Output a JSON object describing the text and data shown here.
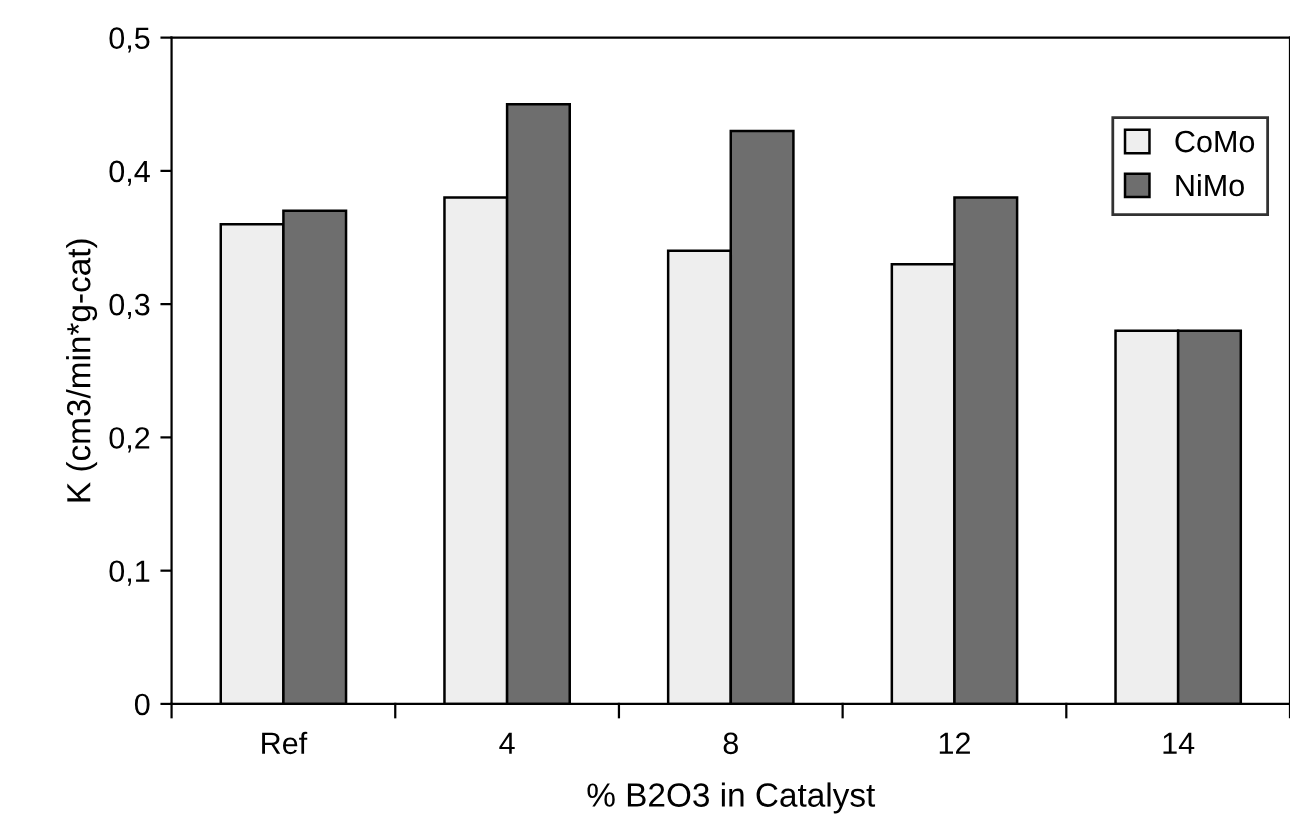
{
  "chart_data": {
    "type": "bar",
    "xlabel": "% B2O3 in Catalyst",
    "ylabel": "K (cm3/min*g-cat)",
    "categories": [
      "Ref",
      "4",
      "8",
      "12",
      "14"
    ],
    "series": [
      {
        "name": "CoMo",
        "color": "#eeeeee",
        "values": [
          0.36,
          0.38,
          0.34,
          0.33,
          0.28
        ]
      },
      {
        "name": "NiMo",
        "color": "#6e6e6e",
        "values": [
          0.37,
          0.45,
          0.43,
          0.38,
          0.28
        ]
      }
    ],
    "ylim": [
      0,
      0.5
    ],
    "yticks": [
      {
        "value": 0,
        "label": "0"
      },
      {
        "value": 0.1,
        "label": "0,1"
      },
      {
        "value": 0.2,
        "label": "0,2"
      },
      {
        "value": 0.3,
        "label": "0,3"
      },
      {
        "value": 0.4,
        "label": "0,4"
      },
      {
        "value": 0.5,
        "label": "0,5"
      }
    ],
    "grid": false,
    "legend": "top right"
  }
}
